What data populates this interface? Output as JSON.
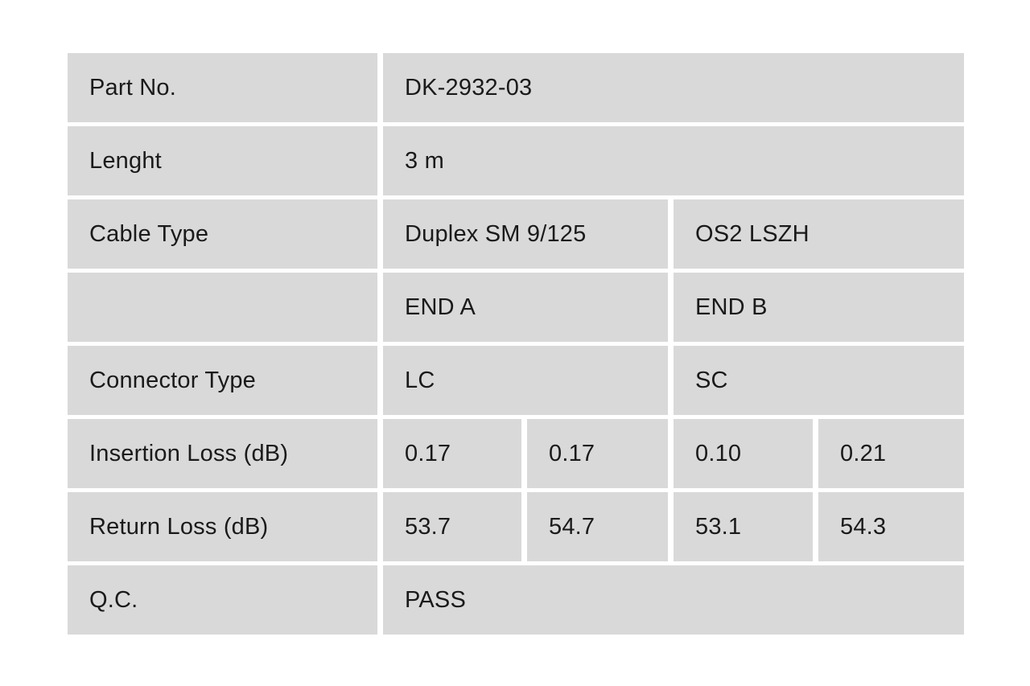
{
  "table": {
    "title": "Cable test specification table",
    "colors": {
      "cell_background": "#d9d9d9",
      "gap_background": "#ffffff",
      "text": "#1a1a1a"
    },
    "rows": {
      "part_no": {
        "label": "Part No.",
        "value": "DK-2932-03"
      },
      "length": {
        "label": "Lenght",
        "value": "3 m"
      },
      "cable_type": {
        "label": "Cable Type",
        "value_a": "Duplex SM 9/125",
        "value_b": "OS2 LSZH"
      },
      "ends": {
        "label": "",
        "value_a": "END A",
        "value_b": "END B"
      },
      "connector_type": {
        "label": "Connector Type",
        "value_a": "LC",
        "value_b": "SC"
      },
      "insertion_loss": {
        "label": "Insertion Loss (dB)",
        "end_a_1": "0.17",
        "end_a_2": "0.17",
        "end_b_1": "0.10",
        "end_b_2": "0.21"
      },
      "return_loss": {
        "label": "Return Loss (dB)",
        "end_a_1": "53.7",
        "end_a_2": "54.7",
        "end_b_1": "53.1",
        "end_b_2": "54.3"
      },
      "qc": {
        "label": "Q.C.",
        "value": "PASS"
      }
    }
  }
}
